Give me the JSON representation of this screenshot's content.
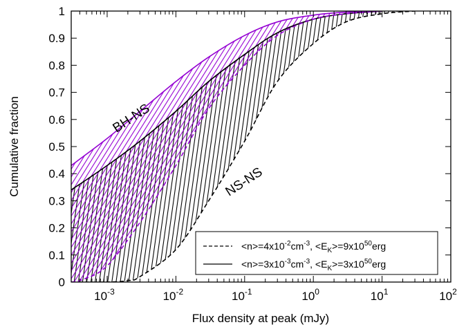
{
  "chart_data": {
    "type": "line",
    "xlabel": "Flux density at peak (mJy)",
    "ylabel": "Cumulative fraction",
    "xscale": "log",
    "xlim": [
      0.0003,
      100
    ],
    "ylim": [
      0,
      1
    ],
    "x_ticks": [
      {
        "base": "10",
        "exp": "-3",
        "value": 0.001
      },
      {
        "base": "10",
        "exp": "-2",
        "value": 0.01
      },
      {
        "base": "10",
        "exp": "-1",
        "value": 0.1
      },
      {
        "base": "10",
        "exp": "0",
        "value": 1
      },
      {
        "base": "10",
        "exp": "1",
        "value": 10
      },
      {
        "base": "10",
        "exp": "2",
        "value": 100
      }
    ],
    "y_ticks": [
      "0",
      "0.1",
      "0.2",
      "0.3",
      "0.4",
      "0.5",
      "0.6",
      "0.7",
      "0.8",
      "0.9",
      "1"
    ],
    "legend": {
      "placement": "bottom-right",
      "entries": [
        {
          "style": "dashed",
          "parts": [
            "<n>=4x10",
            "-2",
            "cm",
            "-3",
            ", <E",
            "K",
            ">=9x10",
            "50",
            "erg"
          ]
        },
        {
          "style": "solid",
          "parts": [
            "<n>=3x10",
            "-3",
            "cm",
            "-3",
            ", <E",
            "K",
            ">=3x10",
            "50",
            "erg"
          ]
        }
      ]
    },
    "annotations": [
      {
        "text": "BH-NS",
        "color": "#9400d3"
      },
      {
        "text": "NS-NS",
        "color": "#000000"
      }
    ],
    "series": [
      {
        "name": "BH-NS",
        "color": "#9400d3",
        "solid": {
          "x": [
            0.0003,
            0.001,
            0.003,
            0.01,
            0.03,
            0.1,
            0.3,
            1,
            3,
            10
          ],
          "y": [
            0.43,
            0.53,
            0.63,
            0.74,
            0.83,
            0.91,
            0.96,
            0.985,
            0.996,
            1.0
          ]
        },
        "dashed": {
          "x": [
            0.0003,
            0.00045,
            0.001,
            0.003,
            0.01,
            0.03,
            0.1,
            0.3,
            1,
            3,
            10
          ],
          "y": [
            0.0,
            0.01,
            0.06,
            0.22,
            0.43,
            0.64,
            0.8,
            0.91,
            0.97,
            0.99,
            1.0
          ]
        }
      },
      {
        "name": "NS-NS",
        "color": "#000000",
        "solid": {
          "x": [
            0.0003,
            0.001,
            0.003,
            0.01,
            0.03,
            0.1,
            0.3,
            1,
            3,
            10
          ],
          "y": [
            0.34,
            0.43,
            0.52,
            0.63,
            0.74,
            0.84,
            0.92,
            0.97,
            0.99,
            1.0
          ]
        },
        "dashed": {
          "x": [
            0.0003,
            0.001,
            0.002,
            0.003,
            0.01,
            0.03,
            0.1,
            0.3,
            1,
            3,
            10,
            30
          ],
          "y": [
            0.0,
            0.0,
            0.005,
            0.02,
            0.12,
            0.3,
            0.52,
            0.74,
            0.88,
            0.96,
            0.99,
            1.0
          ]
        }
      }
    ]
  }
}
